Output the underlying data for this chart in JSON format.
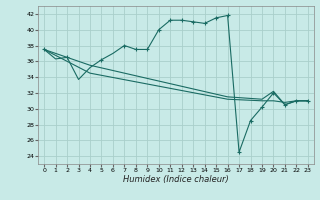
{
  "xlabel": "Humidex (Indice chaleur)",
  "bg_color": "#c8eae7",
  "grid_color": "#aacfcb",
  "line_color": "#1a6b63",
  "xlim": [
    -0.5,
    23.5
  ],
  "ylim": [
    23,
    43
  ],
  "xticks": [
    0,
    1,
    2,
    3,
    4,
    5,
    6,
    7,
    8,
    9,
    10,
    11,
    12,
    13,
    14,
    15,
    16,
    17,
    18,
    19,
    20,
    21,
    22,
    23
  ],
  "yticks": [
    24,
    26,
    28,
    30,
    32,
    34,
    36,
    38,
    40,
    42
  ],
  "line1_x": [
    0,
    1,
    2,
    3,
    4,
    5,
    6,
    7,
    8,
    9,
    10,
    11,
    12,
    13,
    14,
    15,
    16,
    17,
    18,
    19,
    20,
    21,
    22,
    23
  ],
  "line1_y": [
    37.5,
    36.3,
    36.5,
    33.7,
    35.2,
    36.2,
    37.0,
    38.0,
    37.5,
    37.5,
    40.0,
    41.2,
    41.2,
    41.0,
    40.8,
    41.5,
    41.8,
    24.5,
    28.5,
    30.2,
    32.0,
    30.5,
    31.0,
    31.0
  ],
  "line2_x": [
    0,
    4,
    16,
    19,
    20,
    21,
    22,
    23
  ],
  "line2_y": [
    37.5,
    35.5,
    31.5,
    31.2,
    32.2,
    30.5,
    31.0,
    31.0
  ],
  "line3_x": [
    0,
    4,
    16,
    19,
    20,
    21,
    22,
    23
  ],
  "line3_y": [
    37.5,
    34.5,
    31.2,
    31.0,
    31.0,
    30.8,
    31.0,
    31.0
  ],
  "markers_x": [
    0,
    2,
    5,
    7,
    8,
    9,
    10,
    11,
    12,
    13,
    14,
    15,
    16,
    17,
    18,
    19,
    20,
    21,
    22,
    23
  ],
  "markers_y": [
    37.5,
    36.5,
    36.2,
    38.0,
    37.5,
    37.5,
    40.0,
    41.2,
    41.2,
    41.0,
    40.8,
    41.5,
    41.8,
    24.5,
    28.5,
    30.2,
    32.0,
    30.5,
    31.0,
    31.0
  ]
}
